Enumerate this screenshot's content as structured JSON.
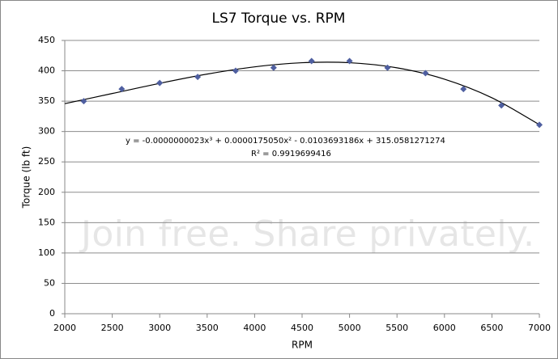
{
  "chart_data": {
    "type": "scatter",
    "title": "LS7 Torque vs. RPM",
    "x_label": "RPM",
    "y_label": "Torque (lb ft)",
    "x": [
      2200,
      2600,
      3000,
      3400,
      3800,
      4200,
      4600,
      5000,
      5400,
      5800,
      6200,
      6600,
      7000
    ],
    "values": [
      350,
      370,
      380,
      390,
      400,
      405,
      416,
      416,
      405,
      396,
      370,
      343,
      311
    ],
    "color": "#4f5fa0",
    "trendline": {
      "color": "#000000",
      "x": [
        2000,
        2500,
        3000,
        3500,
        4000,
        4500,
        5000,
        5500,
        6000,
        6500,
        7000
      ],
      "values": [
        345.9,
        362.6,
        379.4,
        394.6,
        406.5,
        413.3,
        413.3,
        404.9,
        386.2,
        355.6,
        311.3
      ]
    },
    "annotations": [
      "y = -0.0000000023x³ + 0.0000175050x² - 0.0103693186x + 315.0581271274",
      "R² = 0.9919699416"
    ],
    "watermark": "Join free. Share privately.",
    "xlim": [
      2000,
      7000
    ],
    "xticks": [
      2000,
      2500,
      3000,
      3500,
      4000,
      4500,
      5000,
      5500,
      6000,
      6500,
      7000
    ],
    "ylim": [
      0,
      450
    ],
    "yticks": [
      0,
      50,
      100,
      150,
      200,
      250,
      300,
      350,
      400,
      450
    ],
    "grid": true
  }
}
